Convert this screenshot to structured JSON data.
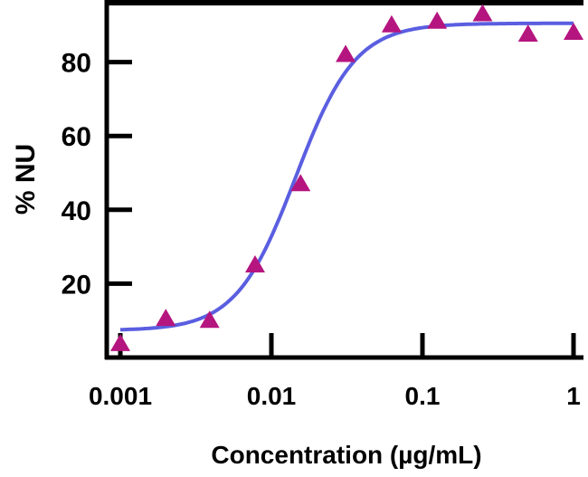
{
  "chart_data": {
    "type": "scatter",
    "title": "",
    "xlabel": "Concentration (µg/mL)",
    "ylabel": "% NU",
    "x_scale": "log",
    "xlim": [
      0.001,
      1
    ],
    "ylim": [
      0,
      95
    ],
    "x_ticks": [
      {
        "value": 0.001,
        "label": "0.001"
      },
      {
        "value": 0.01,
        "label": "0.01"
      },
      {
        "value": 0.1,
        "label": "0.1"
      },
      {
        "value": 1,
        "label": "1"
      }
    ],
    "y_ticks": [
      {
        "value": 20,
        "label": "20"
      },
      {
        "value": 40,
        "label": "40"
      },
      {
        "value": 60,
        "label": "60"
      },
      {
        "value": 80,
        "label": "80"
      }
    ],
    "grid": false,
    "points": {
      "marker": "triangle",
      "color": "#b5157f",
      "x": [
        0.001,
        0.002,
        0.0039,
        0.0078,
        0.0156,
        0.031,
        0.0625,
        0.125,
        0.25,
        0.5,
        1
      ],
      "y": [
        3.7,
        10.5,
        10,
        25,
        47,
        82,
        90,
        91,
        93,
        87.5,
        88
      ]
    },
    "fit_curve": {
      "type": "4-parameter logistic",
      "color": "#5a5ee0",
      "bottom": 7.3,
      "top": 90.5,
      "ec50": 0.0145,
      "hill": 2.2
    }
  }
}
